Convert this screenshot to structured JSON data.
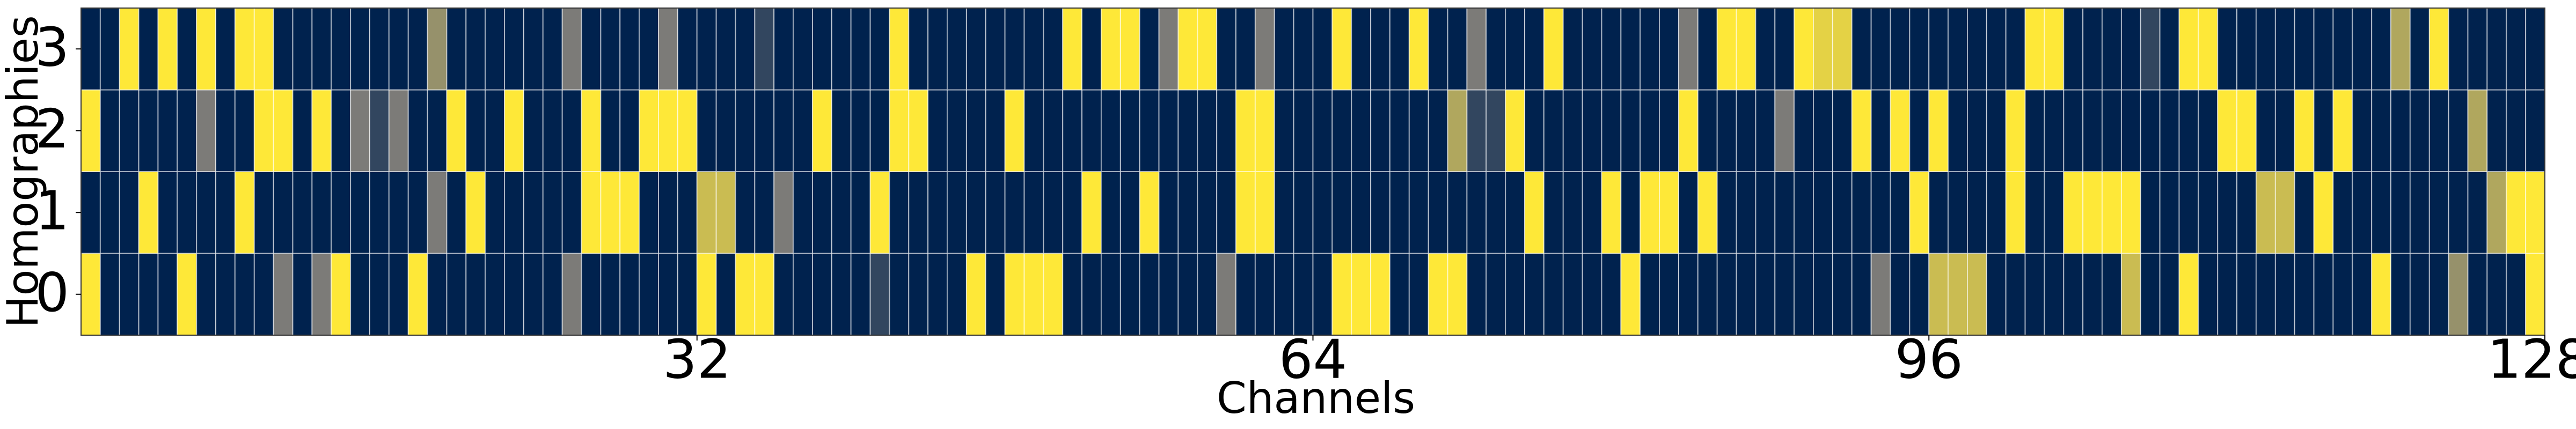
{
  "chart_data": {
    "type": "heatmap",
    "xlabel": "Channels",
    "ylabel": "Homographies",
    "xlim": [
      0,
      128
    ],
    "xticks": [
      32,
      64,
      96,
      128
    ],
    "ylim": [
      -0.5,
      3.5
    ],
    "yticks": [
      0,
      1,
      2,
      3
    ],
    "colormap": [
      "#00224e",
      "#7c7b78",
      "#fee838"
    ],
    "zlim": [
      0,
      1
    ],
    "z": [
      [
        1,
        0,
        0,
        0,
        0,
        1,
        0,
        0,
        0,
        0,
        0.5,
        0,
        0.5,
        1,
        0,
        0,
        0,
        1,
        0,
        0,
        0,
        0,
        0,
        0,
        0,
        0.5,
        0,
        0,
        0,
        0,
        0,
        0,
        1,
        0,
        1,
        1,
        0,
        0,
        0,
        0,
        0,
        0.2,
        0,
        0,
        0,
        0,
        1,
        0,
        1,
        1,
        1,
        0,
        0,
        0,
        0,
        0,
        0,
        0,
        0,
        0.5,
        0,
        0,
        0,
        0,
        0,
        1,
        1,
        1,
        0,
        0,
        1,
        1,
        0,
        0,
        0,
        0,
        0,
        0,
        0,
        0,
        1,
        0,
        0,
        0,
        0,
        0,
        0,
        0,
        0,
        0,
        0,
        0,
        0,
        0.5,
        0,
        0,
        0.8,
        0.8,
        0.8,
        0,
        0,
        0,
        0,
        0,
        0,
        0,
        0.8,
        0,
        0,
        1,
        0,
        0,
        0,
        0,
        0,
        0,
        0,
        0,
        0,
        1,
        0,
        0,
        0,
        0.6,
        0,
        0,
        0,
        1
      ],
      [
        0,
        0,
        0,
        1,
        0,
        0,
        0,
        0,
        1,
        0,
        0,
        0,
        0,
        0,
        0,
        0,
        0,
        0,
        0.5,
        0,
        1,
        0,
        0,
        0,
        0,
        0,
        1,
        1,
        1,
        0,
        0,
        0,
        0.8,
        0.8,
        0,
        0,
        0.5,
        0,
        0,
        0,
        0,
        1,
        0,
        0,
        0,
        0,
        0,
        0,
        0,
        0,
        0,
        0,
        1,
        0,
        0,
        1,
        0,
        0,
        0,
        0,
        1,
        1,
        0,
        0,
        0,
        0,
        0,
        0,
        0,
        0,
        0,
        0,
        0,
        0,
        0,
        1,
        0,
        0,
        0,
        1,
        0,
        1,
        1,
        0,
        1,
        0,
        0,
        0,
        0,
        0,
        0,
        0,
        0,
        0,
        0,
        1,
        0,
        0,
        0,
        0,
        1,
        0,
        0,
        1,
        1,
        1,
        1,
        0,
        0,
        0,
        0,
        0,
        0,
        0.8,
        0.8,
        0,
        1,
        0,
        0,
        0,
        0,
        0,
        0,
        0,
        0,
        0.7,
        1,
        1
      ],
      [
        1,
        0,
        0,
        0,
        0,
        0,
        0.5,
        0,
        0,
        1,
        1,
        0,
        1,
        0,
        0.5,
        0.2,
        0.5,
        0,
        0,
        1,
        0,
        0,
        1,
        0,
        0,
        0,
        1,
        0,
        0,
        1,
        1,
        1,
        0,
        0,
        0,
        0,
        0,
        0,
        1,
        0,
        0,
        0,
        1,
        1,
        0,
        0,
        0,
        0,
        1,
        0,
        0,
        0,
        0,
        0,
        0,
        0,
        0,
        0,
        0,
        0,
        1,
        1,
        0,
        0,
        0,
        0,
        0,
        0,
        0,
        0,
        0,
        0.7,
        0.2,
        0.2,
        1,
        0,
        0,
        0,
        0,
        0,
        0,
        0,
        0,
        1,
        0,
        0,
        0,
        0,
        0.5,
        0,
        0,
        0,
        1,
        0,
        1,
        0,
        1,
        0,
        0,
        0,
        1,
        0,
        0,
        0,
        0,
        0,
        0,
        0,
        0,
        0,
        0,
        1,
        1,
        0,
        0,
        1,
        0,
        1,
        0,
        0,
        0,
        0,
        0,
        0,
        0.7,
        0,
        0,
        0
      ],
      [
        0,
        0,
        1,
        0,
        1,
        0,
        1,
        0,
        1,
        1,
        0,
        0,
        0,
        0,
        0,
        0,
        0,
        0,
        0.6,
        0,
        0,
        0,
        0,
        0,
        0,
        0.5,
        0,
        0,
        0,
        0,
        0.5,
        0,
        0,
        0,
        0,
        0.2,
        0,
        0,
        0,
        0,
        0,
        0,
        1,
        0,
        0,
        0,
        0,
        0,
        0,
        0,
        0,
        1,
        0,
        1,
        1,
        0,
        0.5,
        1,
        1,
        0,
        0,
        0.5,
        0,
        0,
        0,
        1,
        0,
        0,
        0,
        1,
        0,
        0,
        0.5,
        0,
        0,
        0,
        1,
        0,
        0,
        0,
        0,
        0,
        0,
        0.5,
        0,
        1,
        1,
        0,
        0,
        1,
        0.9,
        0.9,
        0,
        0,
        0,
        0,
        0,
        0,
        0,
        0,
        0,
        1,
        1,
        0,
        0,
        0,
        0,
        0.2,
        0,
        1,
        1,
        0,
        0,
        0,
        0,
        0,
        0,
        0,
        0,
        0,
        0.7,
        0,
        1,
        0,
        0,
        0,
        0,
        0
      ]
    ]
  }
}
